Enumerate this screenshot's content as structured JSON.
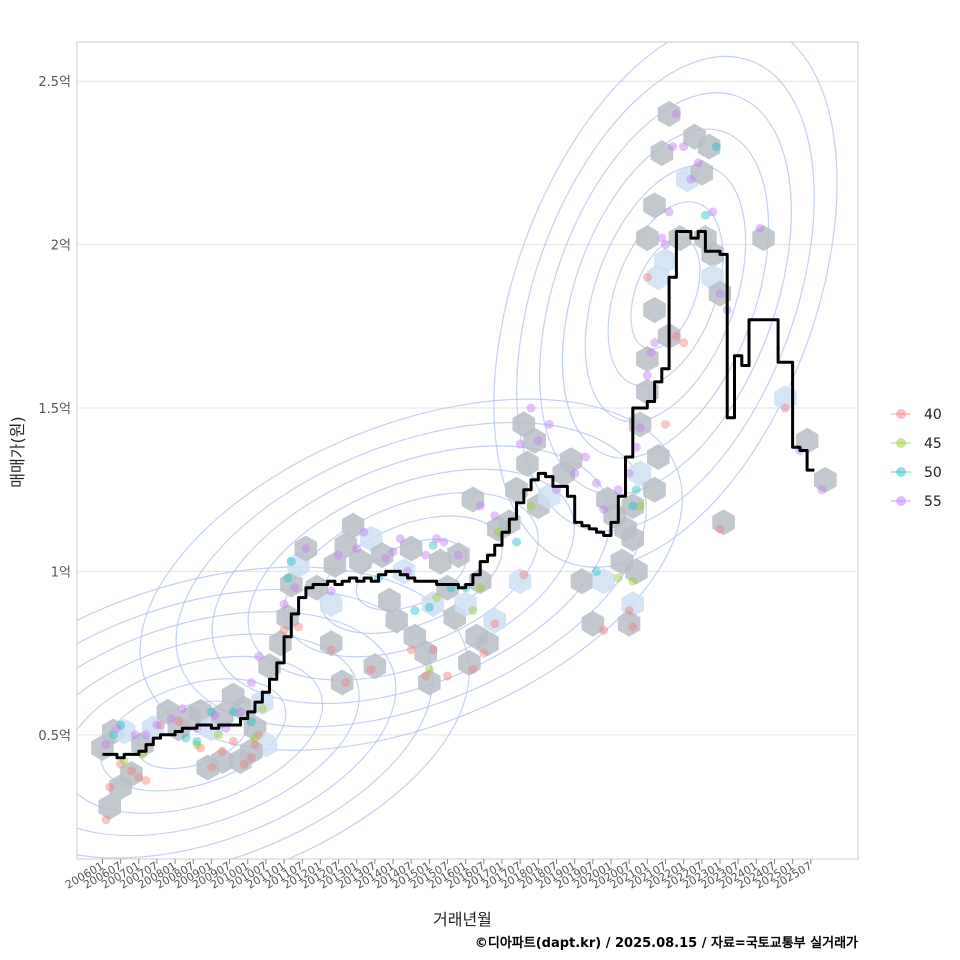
{
  "chart_data": {
    "type": "line",
    "subtype": "hexbin scatter with density contours and moving-median line",
    "ylabel": "매매가(원)",
    "xlabel": "거래년월",
    "caption": "©디아파트(dapt.kr) / 2025.08.15 / 자료=국토교통부 실거래가",
    "y_ticks": [
      {
        "value": 0.5,
        "label": "0.5억"
      },
      {
        "value": 1.0,
        "label": "1억"
      },
      {
        "value": 1.5,
        "label": "1.5억"
      },
      {
        "value": 2.0,
        "label": "2억"
      },
      {
        "value": 2.5,
        "label": "2.5억"
      }
    ],
    "ylim": [
      0.12,
      2.62
    ],
    "x_ticks": [
      "200601",
      "200607",
      "200701",
      "200707",
      "200801",
      "200807",
      "200901",
      "200907",
      "201001",
      "201007",
      "201101",
      "201107",
      "201201",
      "201207",
      "201301",
      "201307",
      "201401",
      "201407",
      "201501",
      "201507",
      "201601",
      "201607",
      "201701",
      "201707",
      "201801",
      "201807",
      "201901",
      "201907",
      "202001",
      "202007",
      "202101",
      "202107",
      "202201",
      "202207",
      "202301",
      "202307",
      "202401",
      "202407",
      "202501",
      "202507"
    ],
    "xlim": [
      2005.3,
      2026.8
    ],
    "grid": true,
    "legend": {
      "position": "right",
      "entries": [
        {
          "label": "40",
          "color": "#f08080"
        },
        {
          "label": "45",
          "color": "#9acd32"
        },
        {
          "label": "50",
          "color": "#20c0c8"
        },
        {
          "label": "55",
          "color": "#c07cf5"
        }
      ]
    },
    "median_line": [
      [
        2006.0,
        0.44
      ],
      [
        2006.2,
        0.44
      ],
      [
        2006.4,
        0.43
      ],
      [
        2006.6,
        0.44
      ],
      [
        2006.8,
        0.44
      ],
      [
        2007.0,
        0.45
      ],
      [
        2007.2,
        0.47
      ],
      [
        2007.4,
        0.49
      ],
      [
        2007.6,
        0.5
      ],
      [
        2007.8,
        0.5
      ],
      [
        2008.0,
        0.51
      ],
      [
        2008.2,
        0.52
      ],
      [
        2008.4,
        0.52
      ],
      [
        2008.6,
        0.53
      ],
      [
        2008.8,
        0.53
      ],
      [
        2009.0,
        0.52
      ],
      [
        2009.2,
        0.53
      ],
      [
        2009.4,
        0.53
      ],
      [
        2009.6,
        0.53
      ],
      [
        2009.8,
        0.55
      ],
      [
        2010.0,
        0.57
      ],
      [
        2010.2,
        0.6
      ],
      [
        2010.4,
        0.63
      ],
      [
        2010.6,
        0.67
      ],
      [
        2010.8,
        0.72
      ],
      [
        2011.0,
        0.8
      ],
      [
        2011.2,
        0.87
      ],
      [
        2011.4,
        0.92
      ],
      [
        2011.6,
        0.95
      ],
      [
        2011.8,
        0.96
      ],
      [
        2012.0,
        0.96
      ],
      [
        2012.2,
        0.97
      ],
      [
        2012.4,
        0.96
      ],
      [
        2012.6,
        0.97
      ],
      [
        2012.8,
        0.98
      ],
      [
        2013.0,
        0.97
      ],
      [
        2013.2,
        0.98
      ],
      [
        2013.4,
        0.97
      ],
      [
        2013.6,
        0.99
      ],
      [
        2013.8,
        1.0
      ],
      [
        2014.0,
        1.0
      ],
      [
        2014.2,
        0.99
      ],
      [
        2014.4,
        0.98
      ],
      [
        2014.6,
        0.97
      ],
      [
        2014.8,
        0.97
      ],
      [
        2015.0,
        0.97
      ],
      [
        2015.2,
        0.96
      ],
      [
        2015.4,
        0.96
      ],
      [
        2015.6,
        0.96
      ],
      [
        2015.8,
        0.95
      ],
      [
        2016.0,
        0.96
      ],
      [
        2016.2,
        0.99
      ],
      [
        2016.4,
        1.03
      ],
      [
        2016.6,
        1.05
      ],
      [
        2016.8,
        1.08
      ],
      [
        2017.0,
        1.12
      ],
      [
        2017.2,
        1.16
      ],
      [
        2017.4,
        1.21
      ],
      [
        2017.6,
        1.25
      ],
      [
        2017.8,
        1.28
      ],
      [
        2018.0,
        1.3
      ],
      [
        2018.2,
        1.29
      ],
      [
        2018.4,
        1.26
      ],
      [
        2018.6,
        1.26
      ],
      [
        2018.8,
        1.23
      ],
      [
        2019.0,
        1.15
      ],
      [
        2019.2,
        1.14
      ],
      [
        2019.4,
        1.13
      ],
      [
        2019.6,
        1.12
      ],
      [
        2019.8,
        1.11
      ],
      [
        2020.0,
        1.15
      ],
      [
        2020.2,
        1.23
      ],
      [
        2020.4,
        1.35
      ],
      [
        2020.6,
        1.5
      ],
      [
        2020.8,
        1.5
      ],
      [
        2021.0,
        1.52
      ],
      [
        2021.2,
        1.58
      ],
      [
        2021.4,
        1.62
      ],
      [
        2021.6,
        1.9
      ],
      [
        2021.8,
        2.04
      ],
      [
        2022.0,
        2.04
      ],
      [
        2022.2,
        2.02
      ],
      [
        2022.4,
        2.04
      ],
      [
        2022.6,
        1.98
      ],
      [
        2022.8,
        1.98
      ],
      [
        2023.0,
        1.97
      ],
      [
        2023.2,
        1.47
      ],
      [
        2023.4,
        1.66
      ],
      [
        2023.6,
        1.63
      ],
      [
        2023.8,
        1.77
      ],
      [
        2024.0,
        1.77
      ],
      [
        2024.2,
        1.77
      ],
      [
        2024.4,
        1.77
      ],
      [
        2024.6,
        1.64
      ],
      [
        2024.8,
        1.64
      ],
      [
        2025.0,
        1.38
      ],
      [
        2025.2,
        1.37
      ],
      [
        2025.4,
        1.31
      ],
      [
        2025.6,
        1.31
      ]
    ],
    "points_40": [
      [
        2006.1,
        0.24
      ],
      [
        2006.2,
        0.34
      ],
      [
        2006.5,
        0.41
      ],
      [
        2006.8,
        0.39
      ],
      [
        2007.0,
        0.37
      ],
      [
        2007.2,
        0.36
      ],
      [
        2007.6,
        0.53
      ],
      [
        2008.1,
        0.54
      ],
      [
        2008.7,
        0.46
      ],
      [
        2009.0,
        0.4
      ],
      [
        2009.3,
        0.45
      ],
      [
        2009.6,
        0.48
      ],
      [
        2009.9,
        0.41
      ],
      [
        2010.1,
        0.43
      ],
      [
        2010.2,
        0.47
      ],
      [
        2010.3,
        0.5
      ],
      [
        2011.0,
        0.82
      ],
      [
        2011.4,
        0.83
      ],
      [
        2012.3,
        0.76
      ],
      [
        2012.7,
        0.66
      ],
      [
        2013.4,
        0.7
      ],
      [
        2014.5,
        0.76
      ],
      [
        2014.9,
        0.68
      ],
      [
        2015.1,
        0.76
      ],
      [
        2015.5,
        0.68
      ],
      [
        2016.2,
        0.7
      ],
      [
        2016.5,
        0.75
      ],
      [
        2016.8,
        0.84
      ],
      [
        2017.6,
        0.99
      ],
      [
        2019.8,
        0.82
      ],
      [
        2020.5,
        0.88
      ],
      [
        2020.6,
        0.83
      ],
      [
        2021.0,
        1.9
      ],
      [
        2021.5,
        1.45
      ],
      [
        2021.8,
        1.72
      ],
      [
        2022.0,
        1.7
      ],
      [
        2023.0,
        1.13
      ],
      [
        2024.8,
        1.5
      ]
    ],
    "points_45": [
      [
        2006.6,
        0.42
      ],
      [
        2007.1,
        0.44
      ],
      [
        2008.6,
        0.47
      ],
      [
        2009.2,
        0.5
      ],
      [
        2010.2,
        0.49
      ],
      [
        2010.4,
        0.58
      ],
      [
        2015.0,
        0.7
      ],
      [
        2015.2,
        0.92
      ],
      [
        2016.2,
        0.88
      ],
      [
        2016.4,
        0.95
      ],
      [
        2016.9,
        1.12
      ],
      [
        2017.8,
        1.2
      ],
      [
        2020.2,
        0.98
      ],
      [
        2020.6,
        0.97
      ],
      [
        2020.8,
        1.2
      ]
    ],
    "points_50": [
      [
        2006.3,
        0.5
      ],
      [
        2006.5,
        0.53
      ],
      [
        2008.3,
        0.49
      ],
      [
        2008.6,
        0.48
      ],
      [
        2009.0,
        0.57
      ],
      [
        2009.6,
        0.57
      ],
      [
        2010.1,
        0.54
      ],
      [
        2011.1,
        0.98
      ],
      [
        2011.2,
        1.03
      ],
      [
        2013.6,
        0.98
      ],
      [
        2014.6,
        0.88
      ],
      [
        2015.0,
        0.89
      ],
      [
        2015.1,
        1.08
      ],
      [
        2015.6,
        0.95
      ],
      [
        2016.0,
        0.95
      ],
      [
        2017.4,
        1.09
      ],
      [
        2019.6,
        1.0
      ],
      [
        2020.6,
        1.2
      ],
      [
        2020.7,
        1.25
      ],
      [
        2022.6,
        2.09
      ],
      [
        2022.9,
        2.3
      ]
    ],
    "points_55": [
      [
        2006.1,
        0.47
      ],
      [
        2006.4,
        0.52
      ],
      [
        2006.9,
        0.5
      ],
      [
        2007.2,
        0.5
      ],
      [
        2007.5,
        0.53
      ],
      [
        2007.9,
        0.55
      ],
      [
        2008.2,
        0.58
      ],
      [
        2008.6,
        0.52
      ],
      [
        2009.1,
        0.56
      ],
      [
        2009.4,
        0.52
      ],
      [
        2009.8,
        0.57
      ],
      [
        2010.1,
        0.66
      ],
      [
        2010.3,
        0.74
      ],
      [
        2011.0,
        0.9
      ],
      [
        2011.3,
        0.95
      ],
      [
        2011.6,
        1.07
      ],
      [
        2012.3,
        0.94
      ],
      [
        2012.5,
        1.05
      ],
      [
        2013.0,
        1.07
      ],
      [
        2013.2,
        1.12
      ],
      [
        2013.8,
        1.04
      ],
      [
        2014.0,
        1.06
      ],
      [
        2014.2,
        1.1
      ],
      [
        2014.4,
        1.0
      ],
      [
        2014.9,
        1.05
      ],
      [
        2015.2,
        1.1
      ],
      [
        2015.4,
        1.09
      ],
      [
        2015.8,
        1.05
      ],
      [
        2016.4,
        1.2
      ],
      [
        2016.8,
        1.17
      ],
      [
        2017.5,
        1.39
      ],
      [
        2017.8,
        1.5
      ],
      [
        2018.0,
        1.4
      ],
      [
        2018.3,
        1.45
      ],
      [
        2018.5,
        1.25
      ],
      [
        2019.0,
        1.3
      ],
      [
        2019.3,
        1.35
      ],
      [
        2019.6,
        1.27
      ],
      [
        2019.8,
        1.19
      ],
      [
        2020.2,
        1.25
      ],
      [
        2020.5,
        1.3
      ],
      [
        2020.7,
        1.38
      ],
      [
        2020.8,
        1.44
      ],
      [
        2021.0,
        1.6
      ],
      [
        2021.1,
        1.67
      ],
      [
        2021.2,
        1.7
      ],
      [
        2021.4,
        2.02
      ],
      [
        2021.5,
        2.0
      ],
      [
        2021.6,
        2.1
      ],
      [
        2021.7,
        2.3
      ],
      [
        2021.8,
        2.4
      ],
      [
        2022.0,
        2.3
      ],
      [
        2022.2,
        2.2
      ],
      [
        2022.4,
        2.25
      ],
      [
        2022.8,
        2.1
      ],
      [
        2023.0,
        1.85
      ],
      [
        2023.2,
        1.8
      ],
      [
        2024.1,
        2.05
      ],
      [
        2025.2,
        1.37
      ],
      [
        2025.8,
        1.25
      ]
    ],
    "hexbins": [
      [
        2006.0,
        0.46
      ],
      [
        2006.3,
        0.51
      ],
      [
        2006.6,
        0.51
      ],
      [
        2006.2,
        0.28
      ],
      [
        2006.5,
        0.34
      ],
      [
        2006.8,
        0.38
      ],
      [
        2007.1,
        0.47
      ],
      [
        2007.4,
        0.52
      ],
      [
        2007.8,
        0.57
      ],
      [
        2008.1,
        0.52
      ],
      [
        2008.4,
        0.55
      ],
      [
        2008.7,
        0.57
      ],
      [
        2009.0,
        0.52
      ],
      [
        2009.3,
        0.56
      ],
      [
        2009.6,
        0.62
      ],
      [
        2009.9,
        0.58
      ],
      [
        2010.2,
        0.52
      ],
      [
        2010.5,
        0.47
      ],
      [
        2008.9,
        0.4
      ],
      [
        2009.3,
        0.42
      ],
      [
        2009.8,
        0.42
      ],
      [
        2010.1,
        0.45
      ],
      [
        2010.4,
        0.6
      ],
      [
        2010.6,
        0.71
      ],
      [
        2010.9,
        0.78
      ],
      [
        2011.1,
        0.86
      ],
      [
        2011.2,
        0.96
      ],
      [
        2011.4,
        1.02
      ],
      [
        2011.6,
        1.07
      ],
      [
        2011.9,
        0.95
      ],
      [
        2012.3,
        0.78
      ],
      [
        2012.6,
        0.66
      ],
      [
        2012.3,
        0.9
      ],
      [
        2012.4,
        1.02
      ],
      [
        2012.7,
        1.08
      ],
      [
        2012.9,
        1.14
      ],
      [
        2013.1,
        1.03
      ],
      [
        2013.4,
        1.1
      ],
      [
        2013.7,
        1.05
      ],
      [
        2013.5,
        0.71
      ],
      [
        2013.9,
        0.91
      ],
      [
        2014.1,
        0.85
      ],
      [
        2014.3,
        1.0
      ],
      [
        2014.5,
        1.07
      ],
      [
        2014.6,
        0.8
      ],
      [
        2014.9,
        0.75
      ],
      [
        2015.0,
        0.66
      ],
      [
        2015.1,
        0.9
      ],
      [
        2015.3,
        1.03
      ],
      [
        2015.5,
        0.95
      ],
      [
        2015.7,
        0.86
      ],
      [
        2015.8,
        1.05
      ],
      [
        2016.0,
        0.9
      ],
      [
        2016.1,
        0.72
      ],
      [
        2016.3,
        0.8
      ],
      [
        2016.4,
        0.97
      ],
      [
        2016.6,
        0.78
      ],
      [
        2016.8,
        0.85
      ],
      [
        2016.9,
        1.13
      ],
      [
        2016.2,
        1.22
      ],
      [
        2017.2,
        1.15
      ],
      [
        2017.4,
        1.25
      ],
      [
        2017.5,
        0.97
      ],
      [
        2017.7,
        1.33
      ],
      [
        2017.6,
        1.45
      ],
      [
        2017.9,
        1.4
      ],
      [
        2018.0,
        1.2
      ],
      [
        2018.3,
        1.23
      ],
      [
        2018.7,
        1.3
      ],
      [
        2018.9,
        1.34
      ],
      [
        2019.2,
        0.97
      ],
      [
        2019.5,
        0.84
      ],
      [
        2019.8,
        0.97
      ],
      [
        2019.9,
        1.22
      ],
      [
        2020.1,
        1.17
      ],
      [
        2020.3,
        1.03
      ],
      [
        2020.4,
        1.13
      ],
      [
        2020.6,
        0.9
      ],
      [
        2020.5,
        0.84
      ],
      [
        2020.7,
        1.0
      ],
      [
        2020.6,
        1.1
      ],
      [
        2020.6,
        1.2
      ],
      [
        2020.8,
        1.3
      ],
      [
        2020.8,
        1.45
      ],
      [
        2021.0,
        1.55
      ],
      [
        2021.0,
        1.65
      ],
      [
        2021.2,
        1.8
      ],
      [
        2021.3,
        1.9
      ],
      [
        2021.0,
        2.02
      ],
      [
        2021.2,
        2.12
      ],
      [
        2021.4,
        2.28
      ],
      [
        2021.6,
        2.4
      ],
      [
        2021.5,
        1.95
      ],
      [
        2021.6,
        1.72
      ],
      [
        2021.2,
        1.25
      ],
      [
        2021.3,
        1.35
      ],
      [
        2021.9,
        2.02
      ],
      [
        2022.1,
        2.2
      ],
      [
        2022.3,
        2.33
      ],
      [
        2022.5,
        2.22
      ],
      [
        2022.6,
        2.02
      ],
      [
        2022.8,
        1.97
      ],
      [
        2022.8,
        1.9
      ],
      [
        2023.0,
        1.85
      ],
      [
        2022.7,
        2.3
      ],
      [
        2023.1,
        1.15
      ],
      [
        2024.2,
        2.02
      ],
      [
        2024.8,
        1.53
      ],
      [
        2025.4,
        1.4
      ],
      [
        2025.9,
        1.28
      ]
    ]
  }
}
